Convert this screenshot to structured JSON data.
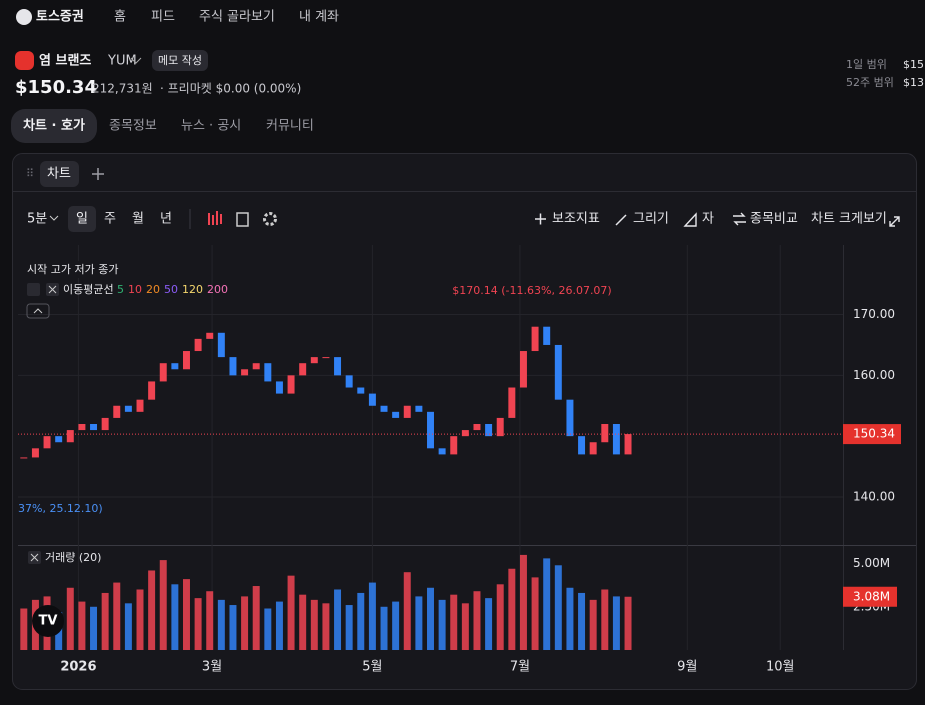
{
  "nav": {
    "logo": "토스증권",
    "items": [
      "홈",
      "피드",
      "주식 골라보기",
      "내 계좌"
    ]
  },
  "stock": {
    "name": "염 브랜즈",
    "ticker": "YUM",
    "memo": "메모 작성",
    "price": "$150.34",
    "price_krw": "212,731원",
    "premarket": "· 프리마켓 $0.00 (0.00%)"
  },
  "range": [
    {
      "label": "1일 범위",
      "value": "$15"
    },
    {
      "label": "52주 범위",
      "value": "$13"
    }
  ],
  "tabs": [
    "차트 · 호가",
    "종목정보",
    "뉴스 · 공시",
    "커뮤니티"
  ],
  "panel_tab": "차트",
  "toolbar": {
    "intervals": [
      "5분",
      "일",
      "주",
      "월",
      "년"
    ],
    "tools": [
      "보조지표",
      "그리기",
      "자",
      "종목비교",
      "차트 크게보기"
    ]
  },
  "chart_data": {
    "type": "candlestick",
    "ohlc_legend": "시작 고가 저가 종가",
    "ma_label": "이동평균선",
    "ma_periods": [
      5,
      10,
      20,
      50,
      120,
      200
    ],
    "ma_colors": [
      "#2fb171",
      "#f04452",
      "#f08a24",
      "#8b5cf6",
      "#f5d76e",
      "#f472b6"
    ],
    "annotations": [
      {
        "text": "$170.14 (-11.63%, 26.07.07)",
        "color": "#f04452"
      },
      {
        "text": "37%, 25.12.10)",
        "color": "#4a90f5"
      }
    ],
    "up_color": "#f04452",
    "down_color": "#3182f6",
    "values": [
      146.5,
      148,
      150,
      149,
      151,
      152,
      151,
      153,
      155,
      154,
      156,
      159,
      162,
      161,
      164,
      166,
      167,
      163,
      160,
      161,
      162,
      159,
      157,
      160,
      162,
      163,
      163,
      160,
      158,
      157,
      155,
      154,
      153,
      155,
      154,
      148,
      147,
      150,
      151,
      152,
      150,
      153,
      158,
      164,
      168,
      165,
      156,
      150,
      147,
      149,
      152,
      147,
      150.34
    ],
    "xlim": [
      -0.5,
      70.5
    ],
    "xticks": [
      {
        "value": 4.7,
        "label": "2026"
      },
      {
        "value": 16.2,
        "label": "3월"
      },
      {
        "value": 30,
        "label": "5월"
      },
      {
        "value": 42.7,
        "label": "7월"
      },
      {
        "value": 57.1,
        "label": "9월"
      },
      {
        "value": 65.1,
        "label": "10월"
      }
    ],
    "ylim": [
      132.1,
      179.3
    ],
    "yticks": [
      {
        "value": 170,
        "label": "170.00"
      },
      {
        "value": 160,
        "label": "160.00"
      },
      {
        "value": 140,
        "label": "140.00"
      }
    ],
    "grid": true,
    "volume": {
      "title": "거래량 (20)",
      "values": [
        2400000,
        2900000,
        3100000,
        2200000,
        3600000,
        2800000,
        2500000,
        3300000,
        3900000,
        2700000,
        3500000,
        4600000,
        5200000,
        3800000,
        4100000,
        3000000,
        3400000,
        2900000,
        2600000,
        3100000,
        3700000,
        2400000,
        2800000,
        4300000,
        3200000,
        2900000,
        2700000,
        3500000,
        2600000,
        3300000,
        3900000,
        2500000,
        2800000,
        4500000,
        3100000,
        3600000,
        2900000,
        3200000,
        2700000,
        3400000,
        3000000,
        3800000,
        4700000,
        5500000,
        4200000,
        5300000,
        4900000,
        3600000,
        3300000,
        2900000,
        3500000,
        3100000,
        3080000
      ],
      "ylim": [
        0,
        5900000
      ],
      "yticks": [
        {
          "value": 5000000,
          "label": "5.00M"
        },
        {
          "value": 2500000,
          "label": "2.50M"
        }
      ],
      "last_label": "3.08M"
    }
  }
}
